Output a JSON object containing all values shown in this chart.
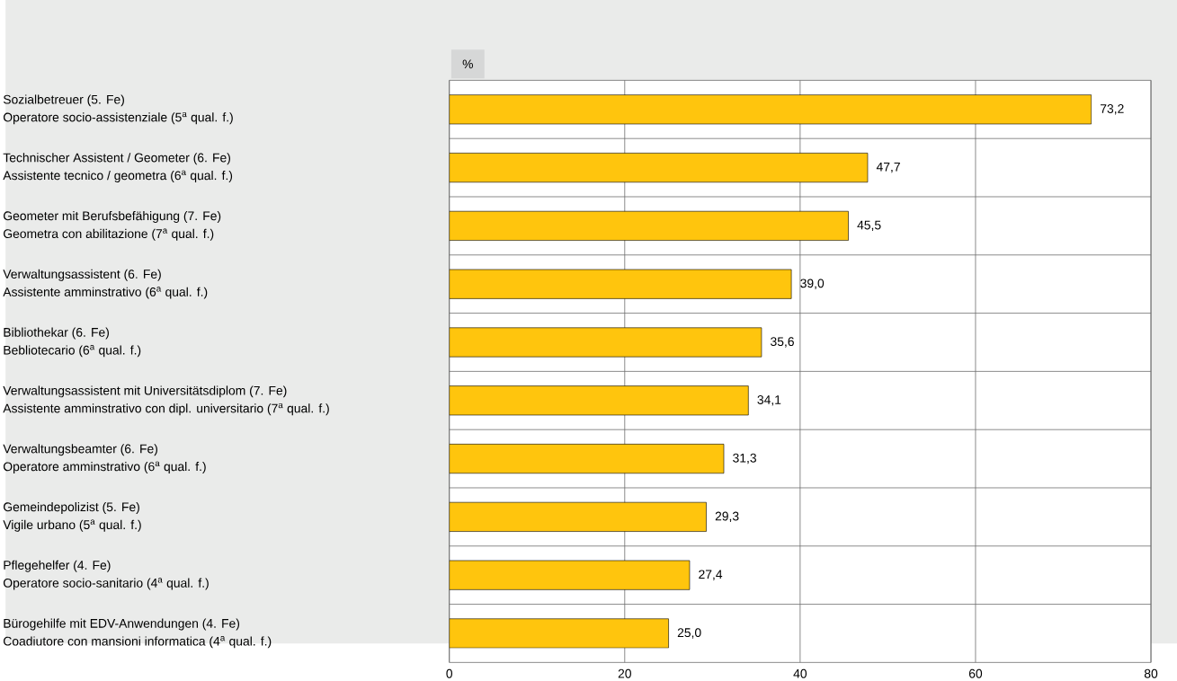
{
  "chart_data": {
    "type": "bar",
    "orientation": "horizontal",
    "xlabel": "%",
    "categories": [
      "Sozialbetreuer (5. Fe)\nOperatore socio-assistenziale (5$^{a}$ qual. f.)",
      "Technischer Assistent / Geometer (6. Fe)\nAssistente tecnico / geometra (6$^{a}$ qual. f.)",
      "Geometer mit Berufsbefähigung (7. Fe)\nGeometra con abilitazione (7$^{a}$ qual. f.)",
      "Verwaltungsassistent (6. Fe)\nAssistente amminstrativo (6$^{a}$ qual. f.)",
      "Bibliothekar (6. Fe)\nBebliotecario (6$^{a}$ qual. f.)",
      "Verwaltungsassistent mit Universitätsdiplom (7. Fe)\nAssistente amminstrativo con dipl. universitario (7$^{a}$ qual. f.)",
      "Verwaltungsbeamter (6. Fe)\nOperatore amminstrativo (6$^{a}$ qual. f.)",
      "Gemeindepolizist (5. Fe)\nVigile urbano (5$^{a}$ qual. f.)",
      "Pflegehelfer (4. Fe)\nOperatore socio-sanitario (4$^{a}$ qual. f.)",
      "Bürogehilfe mit EDV-Anwendungen (4. Fe)\nCoadiutore con mansioni informatica (4$^{a}$ qual. f.)"
    ],
    "values": [
      73.2,
      47.7,
      45.5,
      39.0,
      35.6,
      34.1,
      31.3,
      29.3,
      27.4,
      25.0
    ],
    "value_labels": [
      "73,2",
      "47,7",
      "45,5",
      "39,0",
      "35,6",
      "34,1",
      "31,3",
      "29,3",
      "27,4",
      "25,0"
    ],
    "color": "#ffc50d",
    "xlim": [
      0,
      80
    ],
    "xticks": [
      0,
      20,
      40,
      60,
      80
    ],
    "grid": true
  }
}
